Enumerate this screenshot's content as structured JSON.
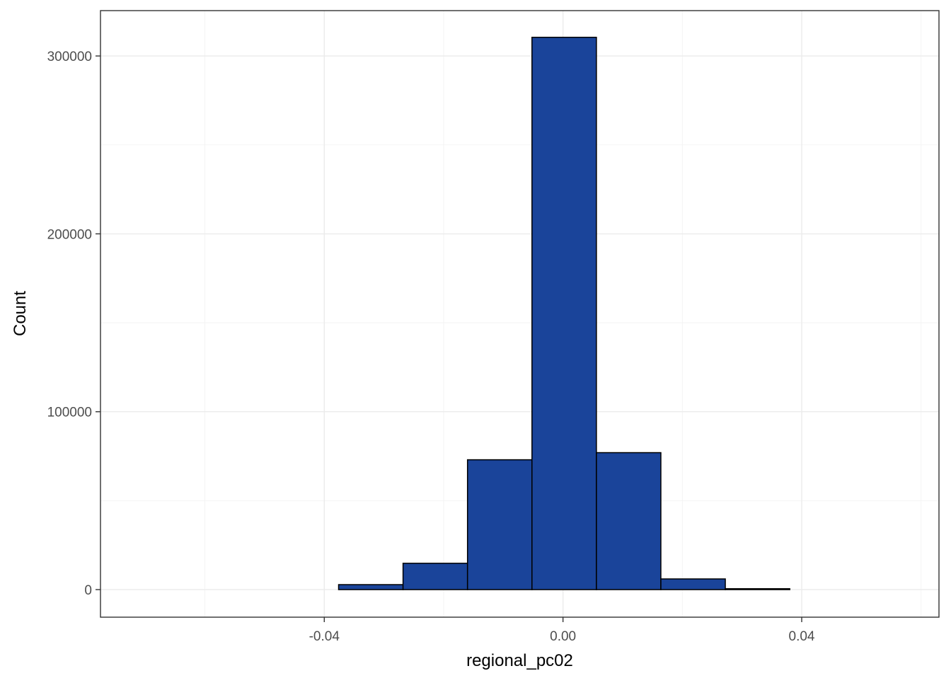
{
  "chart_data": {
    "type": "bar",
    "subtype": "histogram",
    "title": "",
    "xlabel": "regional_pc02",
    "ylabel": "Count",
    "x_ticks": [
      -0.04,
      0.0,
      0.04
    ],
    "x_tick_labels": [
      "-0.04",
      "0.00",
      "0.04"
    ],
    "y_ticks": [
      0,
      100000,
      200000,
      300000
    ],
    "y_tick_labels": [
      "0",
      "100000",
      "200000",
      "300000"
    ],
    "xlim": [
      -0.0775,
      0.063
    ],
    "ylim": [
      -15500,
      325500
    ],
    "bins": [
      {
        "x0": -0.07,
        "x1": -0.0592,
        "count": 0
      },
      {
        "x0": -0.0592,
        "x1": -0.0484,
        "count": 0
      },
      {
        "x0": -0.0484,
        "x1": -0.0376,
        "count": 0
      },
      {
        "x0": -0.0376,
        "x1": -0.0268,
        "count": 2800
      },
      {
        "x0": -0.0268,
        "x1": -0.016,
        "count": 14800
      },
      {
        "x0": -0.016,
        "x1": -0.0052,
        "count": 73000
      },
      {
        "x0": -0.0052,
        "x1": 0.0056,
        "count": 310500
      },
      {
        "x0": 0.0056,
        "x1": 0.0164,
        "count": 77000
      },
      {
        "x0": 0.0164,
        "x1": 0.0272,
        "count": 6000
      },
      {
        "x0": 0.0272,
        "x1": 0.038,
        "count": 500
      },
      {
        "x0": 0.038,
        "x1": 0.0488,
        "count": 0
      },
      {
        "x0": 0.0488,
        "x1": 0.0596,
        "count": 0
      }
    ],
    "fill_color": "#1a449a",
    "border_color": "#000000",
    "grid": true,
    "legend": "none"
  }
}
